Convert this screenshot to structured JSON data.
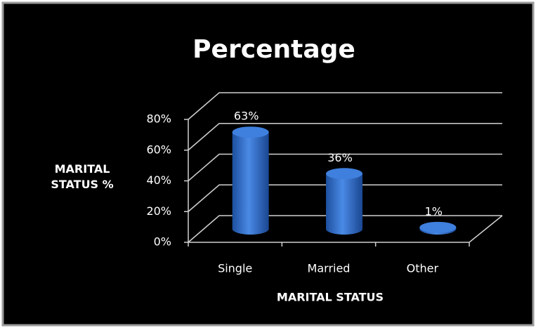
{
  "chart_data": {
    "type": "bar3d",
    "title": "Percentage",
    "categories": [
      "Single",
      "Married",
      "Other"
    ],
    "values": [
      63,
      36,
      1
    ],
    "value_labels": [
      "63%",
      "36%",
      "1%"
    ],
    "color": "#2f6fce",
    "xlabel": "MARITAL STATUS",
    "ylabel": "MARITAL STATUS %",
    "ylim": [
      0,
      80
    ],
    "yticks": [
      {
        "value": 0,
        "label": "0%"
      },
      {
        "value": 20,
        "label": "20%"
      },
      {
        "value": 40,
        "label": "40%"
      },
      {
        "value": 60,
        "label": "60%"
      },
      {
        "value": 80,
        "label": "80%"
      }
    ],
    "grid": true
  }
}
